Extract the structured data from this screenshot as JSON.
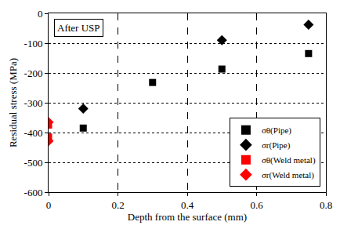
{
  "chart_data": {
    "type": "scatter",
    "annotations": [
      "After USP"
    ],
    "x_label": "Depth from the surface (mm)",
    "y_label": "Residual stress (MPa)",
    "xlim": [
      0,
      0.8
    ],
    "xticks": [
      0,
      0.2,
      0.4,
      0.6,
      0.8
    ],
    "ylim": [
      -600,
      0
    ],
    "yticks": [
      -600,
      -500,
      -400,
      -300,
      -200,
      -100,
      0
    ],
    "grid": true,
    "legend": "lower right",
    "series": [
      {
        "name": "σθ(Pipe)",
        "color": "#000000",
        "marker": "square",
        "x": [
          0.1,
          0.3,
          0.5,
          0.75
        ],
        "values": [
          -385,
          -232,
          -187,
          -135
        ]
      },
      {
        "name": "σr(Pipe)",
        "color": "#000000",
        "marker": "diamond",
        "x": [
          0.1,
          0.5,
          0.75
        ],
        "values": [
          -320,
          -90,
          -38
        ]
      },
      {
        "name": "σθ(Weld metal)",
        "color": "#ff0000",
        "marker": "square",
        "x": [
          0,
          0
        ],
        "values": [
          -375,
          -415
        ]
      },
      {
        "name": "σr(Weld metal)",
        "color": "#ff0000",
        "marker": "diamond",
        "x": [
          0,
          0
        ],
        "values": [
          -365,
          -428
        ]
      }
    ]
  }
}
